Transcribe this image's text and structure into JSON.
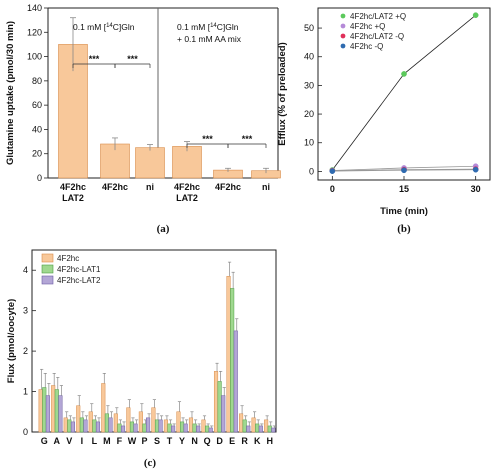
{
  "colors": {
    "orange": "#f8c89a",
    "orange_edge": "#d98c4a",
    "green": "#9fd88f",
    "green_edge": "#4d9e44",
    "purple": "#b3a6d6",
    "purple_edge": "#6d5da3",
    "err": "#888888"
  },
  "chart_data": [
    {
      "id": "a",
      "type": "bar",
      "panel_label": "(a)",
      "ylabel": "Glutamine uptake (pmol/30 min)",
      "ylim": [
        0,
        140
      ],
      "yticks": [
        0,
        20,
        40,
        60,
        80,
        100,
        120,
        140
      ],
      "categories": [
        "4F2hc LAT2",
        "4F2hc",
        "ni",
        "4F2hc LAT2",
        "4F2hc",
        "ni"
      ],
      "category_lines": [
        [
          "4F2hc",
          "LAT2"
        ],
        [
          "4F2hc"
        ],
        [
          "ni"
        ],
        [
          "4F2hc",
          "LAT2"
        ],
        [
          "4F2hc"
        ],
        [
          "ni"
        ]
      ],
      "values": [
        110,
        28,
        25,
        26,
        6.5,
        6
      ],
      "errors": [
        22,
        5,
        2.5,
        4,
        1.5,
        2
      ],
      "conditions": [
        [
          "0.1 mM [",
          "14",
          "C]Gln"
        ],
        [
          "0.1 mM [",
          "14",
          "C]Gln",
          "+ 0.1 mM AA mix"
        ]
      ],
      "significance": [
        "***",
        "***",
        "***",
        "***"
      ]
    },
    {
      "id": "b",
      "type": "line",
      "panel_label": "(b)",
      "xlabel": "Time (min)",
      "ylabel": "Efflux (% of preloaded)",
      "xticks": [
        0,
        15,
        30
      ],
      "yticks": [
        0,
        10,
        20,
        30,
        40,
        50
      ],
      "xlim": [
        -3,
        33
      ],
      "ylim": [
        -3,
        57
      ],
      "series": [
        {
          "name": "4F2hc/LAT2 +Q",
          "color": "#5cc95c",
          "x": [
            0,
            15,
            30
          ],
          "y": [
            0.5,
            34,
            54.5
          ]
        },
        {
          "name": "4F2hc +Q",
          "color": "#b58ad8",
          "x": [
            0,
            15,
            30
          ],
          "y": [
            0.3,
            1.2,
            1.8
          ]
        },
        {
          "name": "4F2hc/LAT2 -Q",
          "color": "#e0305a",
          "x": [
            0,
            15,
            30
          ],
          "y": [
            0.2,
            0.6,
            0.8
          ]
        },
        {
          "name": "4F2hc -Q",
          "color": "#2f6bb0",
          "x": [
            0,
            15,
            30
          ],
          "y": [
            0.1,
            0.4,
            0.6
          ]
        }
      ]
    },
    {
      "id": "c",
      "type": "bar",
      "panel_label": "(c)",
      "ylabel": "Flux (pmol/oocyte)",
      "ylim": [
        0,
        4.5
      ],
      "yticks": [
        0,
        1,
        2,
        3,
        4
      ],
      "categories": [
        "G",
        "A",
        "V",
        "I",
        "L",
        "M",
        "F",
        "W",
        "P",
        "S",
        "T",
        "Y",
        "N",
        "Q",
        "D",
        "E",
        "R",
        "K",
        "H"
      ],
      "series": [
        {
          "name": "4F2hc",
          "values": [
            1.05,
            1.15,
            0.35,
            0.65,
            0.5,
            1.2,
            0.45,
            0.6,
            0.5,
            0.6,
            0.3,
            0.5,
            0.35,
            0.3,
            1.5,
            3.85,
            0.45,
            0.35,
            0.3
          ],
          "errors": [
            0.5,
            0.3,
            0.15,
            0.25,
            0.2,
            0.25,
            0.15,
            0.2,
            0.2,
            0.2,
            0.1,
            0.25,
            0.15,
            0.1,
            0.2,
            0.35,
            0.2,
            0.15,
            0.1
          ]
        },
        {
          "name": "4F2hc-LAT1",
          "values": [
            1.1,
            1.05,
            0.3,
            0.35,
            0.3,
            0.45,
            0.2,
            0.25,
            0.2,
            0.3,
            0.2,
            0.25,
            0.2,
            0.15,
            1.25,
            3.55,
            0.3,
            0.2,
            0.15
          ],
          "errors": [
            0.35,
            0.3,
            0.1,
            0.15,
            0.1,
            0.2,
            0.1,
            0.1,
            0.1,
            0.15,
            0.1,
            0.1,
            0.1,
            0.05,
            0.25,
            0.4,
            0.1,
            0.1,
            0.1
          ]
        },
        {
          "name": "4F2hc-LAT2",
          "values": [
            0.9,
            0.9,
            0.25,
            0.3,
            0.25,
            0.35,
            0.15,
            0.2,
            0.35,
            0.3,
            0.15,
            0.2,
            0.15,
            0.1,
            0.9,
            2.5,
            0.15,
            0.15,
            0.1
          ],
          "errors": [
            0.3,
            0.25,
            0.1,
            0.1,
            0.1,
            0.15,
            0.1,
            0.1,
            0.1,
            0.1,
            0.05,
            0.1,
            0.05,
            0.05,
            0.2,
            0.3,
            0.1,
            0.05,
            0.05
          ]
        }
      ]
    }
  ]
}
